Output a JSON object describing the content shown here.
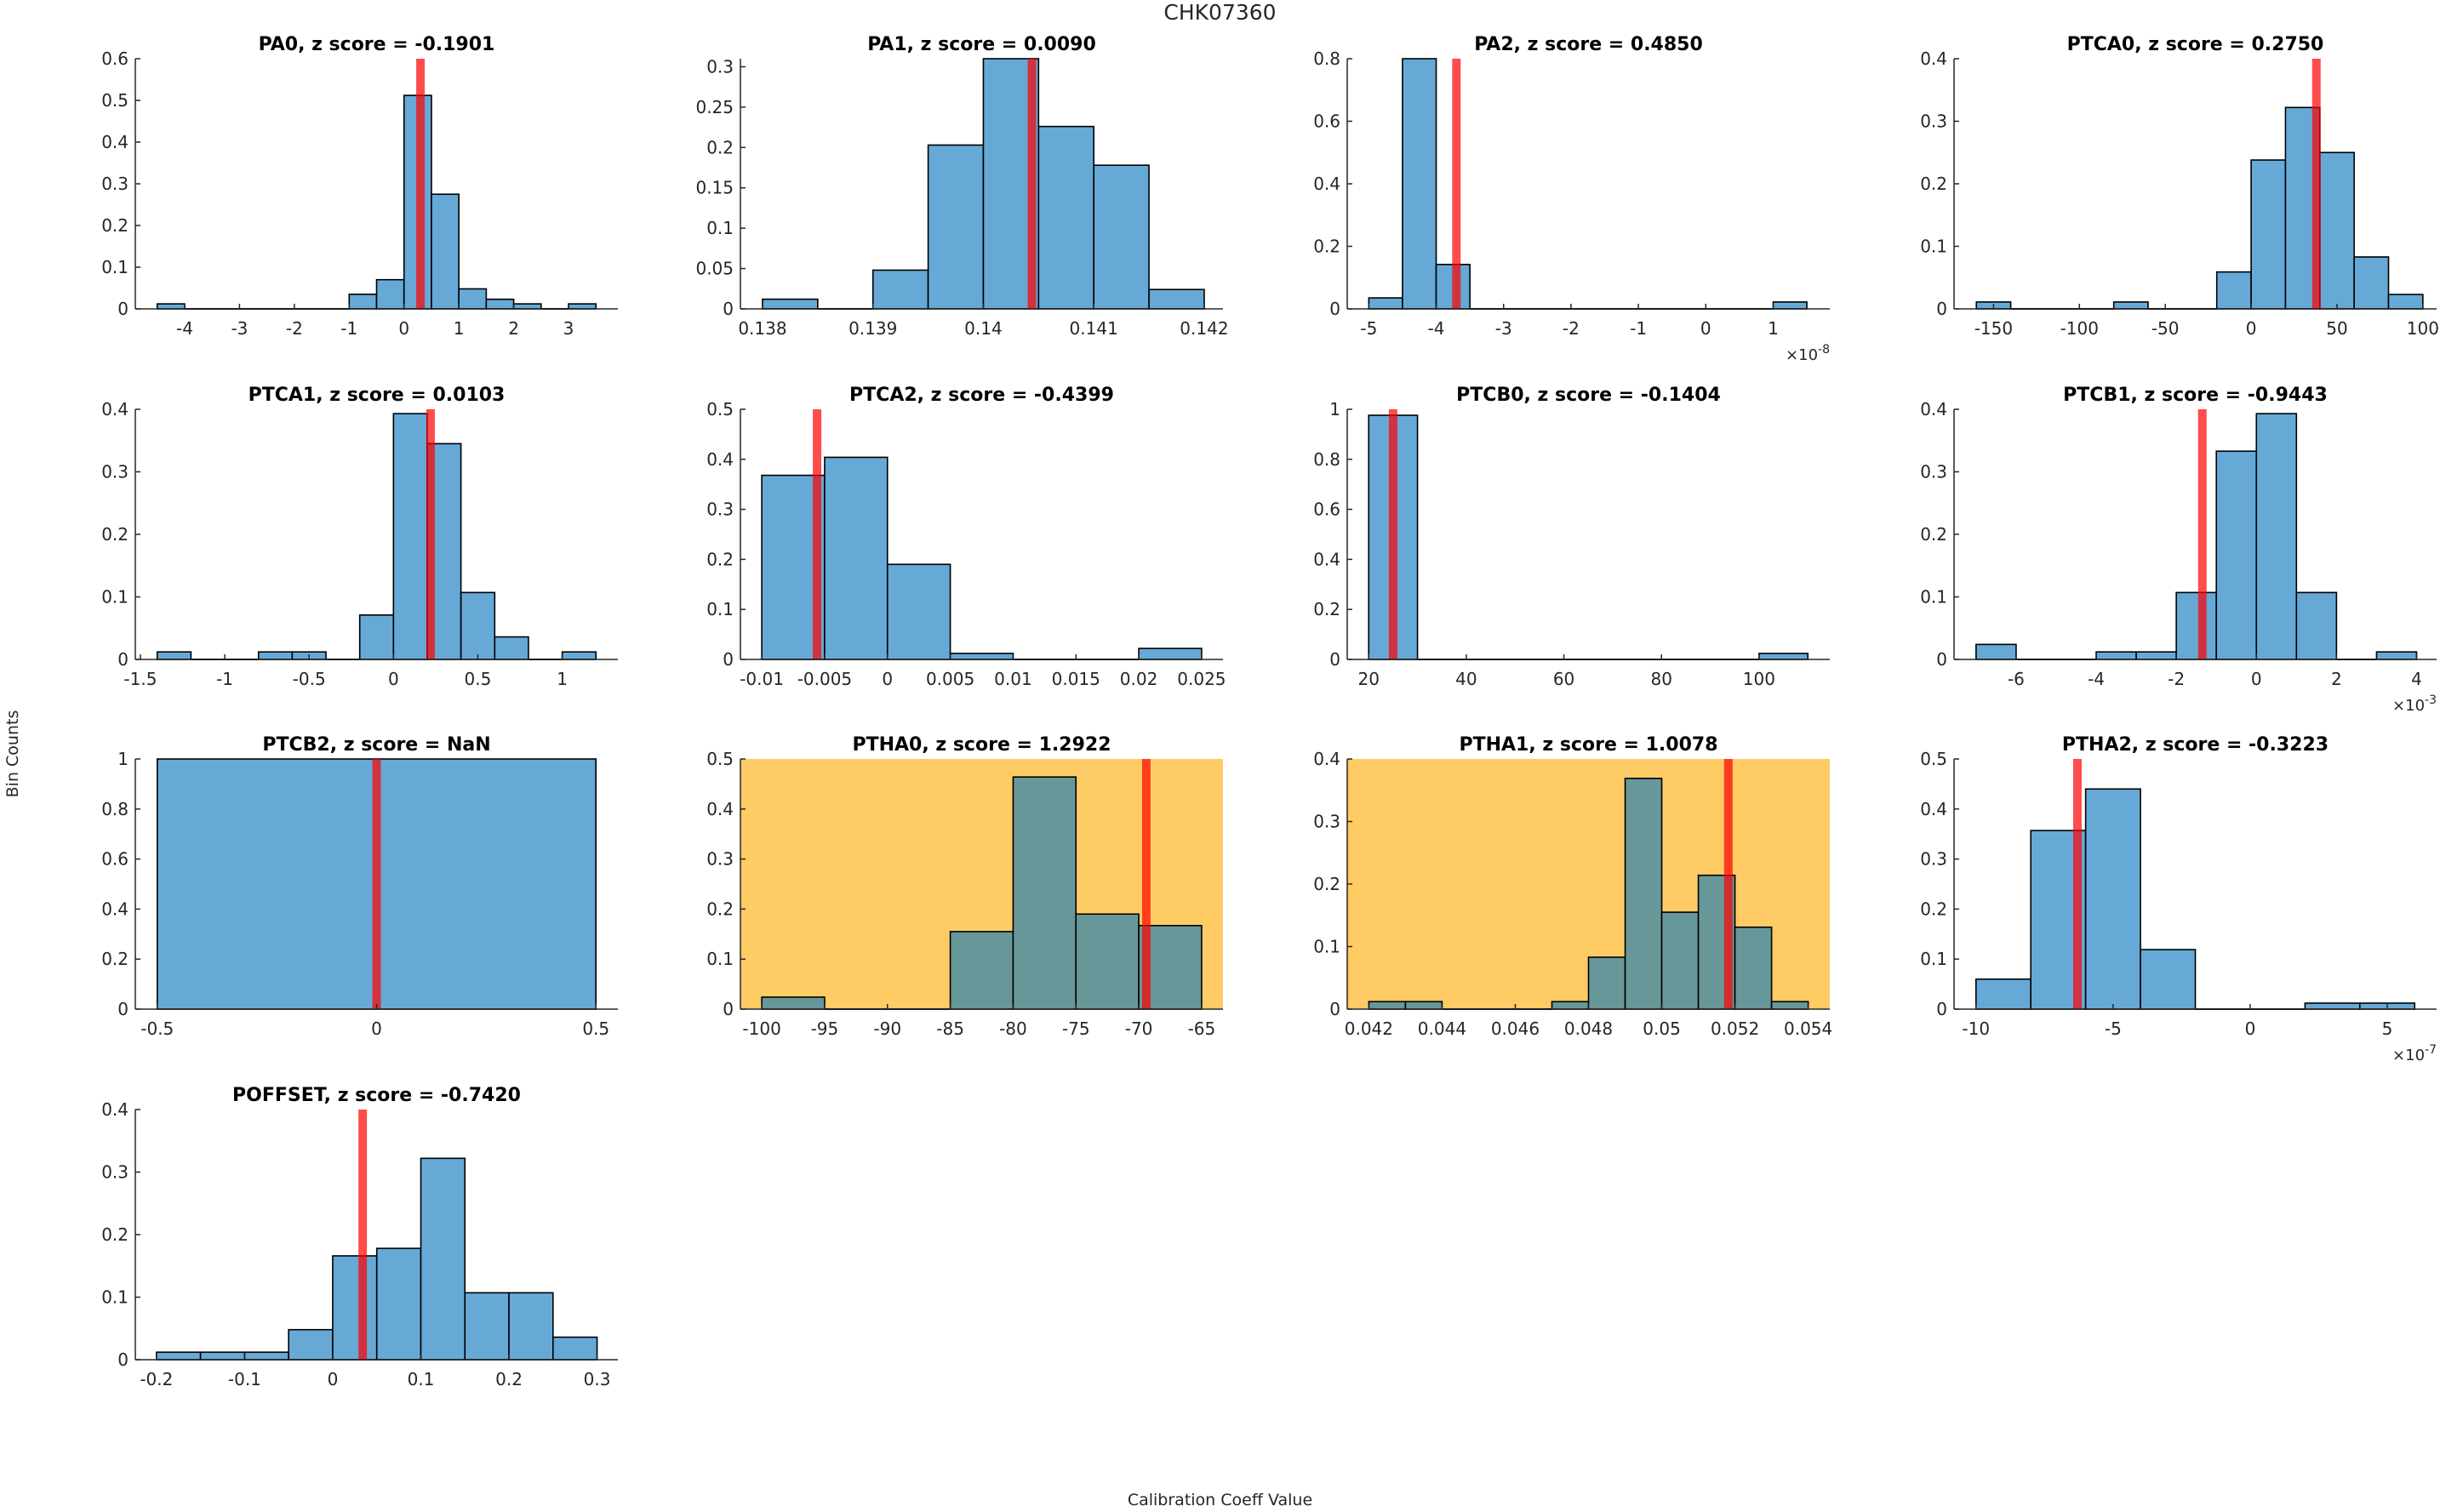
{
  "figure": {
    "title": "CHK07360",
    "ylabel": "Bin Counts",
    "xlabel": "Calibration Coeff Value"
  },
  "colors": {
    "bar": "#66a9d7",
    "bar_on_highlight": "#679799",
    "bar_edge": "#000000",
    "marker_line": "#ff4d4d",
    "highlight_background": "#fecb65",
    "axis": "#262626"
  },
  "chart_data": [
    {
      "type": "bar",
      "name": "PA0",
      "title": "PA0, z score = -0.1901",
      "z_score": "-0.1901",
      "highlight": false,
      "xlim": [
        -4.9,
        3.9
      ],
      "ylim": [
        0,
        0.6
      ],
      "xticks": [
        -4,
        -3,
        -2,
        -1,
        0,
        1,
        2,
        3
      ],
      "xtick_labels": [
        "-4",
        "-3",
        "-2",
        "-1",
        "0",
        "1",
        "2",
        "3"
      ],
      "yticks": [
        0,
        0.1,
        0.2,
        0.3,
        0.4,
        0.5,
        0.6
      ],
      "ytick_labels": [
        "0",
        "0.1",
        "0.2",
        "0.3",
        "0.4",
        "0.5",
        "0.6"
      ],
      "x_exponent": "",
      "bins": [
        [
          -4.5,
          -4,
          0.012
        ],
        [
          -4,
          -3.5,
          0
        ],
        [
          -3.5,
          -3,
          0
        ],
        [
          -3,
          -2.5,
          0
        ],
        [
          -2.5,
          -2,
          0
        ],
        [
          -2,
          -1.5,
          0
        ],
        [
          -1.5,
          -1,
          0
        ],
        [
          -1,
          -0.5,
          0.035
        ],
        [
          -0.5,
          0,
          0.07
        ],
        [
          0,
          0.5,
          0.512
        ],
        [
          0.5,
          1,
          0.275
        ],
        [
          1,
          1.5,
          0.048
        ],
        [
          1.5,
          2,
          0.023
        ],
        [
          2,
          2.5,
          0.012
        ],
        [
          2.5,
          3,
          0
        ],
        [
          3,
          3.5,
          0.012
        ]
      ],
      "marker_value": 0.3
    },
    {
      "type": "bar",
      "name": "PA1",
      "title": "PA1, z score = 0.0090",
      "z_score": "0.0090",
      "highlight": false,
      "xlim": [
        0.1378,
        0.14217
      ],
      "ylim": [
        0,
        0.31
      ],
      "xticks": [
        0.138,
        0.139,
        0.14,
        0.141,
        0.142
      ],
      "xtick_labels": [
        "0.138",
        "0.139",
        "0.14",
        "0.141",
        "0.142"
      ],
      "yticks": [
        0,
        0.05,
        0.1,
        0.15,
        0.2,
        0.25,
        0.3
      ],
      "ytick_labels": [
        "0",
        "0.05",
        "0.1",
        "0.15",
        "0.2",
        "0.25",
        "0.3"
      ],
      "x_exponent": "",
      "bins": [
        [
          0.138,
          0.1385,
          0.012
        ],
        [
          0.1385,
          0.139,
          0
        ],
        [
          0.139,
          0.1395,
          0.048
        ],
        [
          0.1395,
          0.14,
          0.203
        ],
        [
          0.14,
          0.1405,
          0.31
        ],
        [
          0.1405,
          0.141,
          0.226
        ],
        [
          0.141,
          0.1415,
          0.178
        ],
        [
          0.1415,
          0.142,
          0.024
        ]
      ],
      "marker_value": 0.14044
    },
    {
      "type": "bar",
      "name": "PA2",
      "title": "PA2, z score = 0.4850",
      "z_score": "0.4850",
      "highlight": false,
      "xlim": [
        -5.32,
        1.84
      ],
      "ylim": [
        0,
        0.8
      ],
      "xticks": [
        -5,
        -4,
        -3,
        -2,
        -1,
        0,
        1
      ],
      "xtick_labels": [
        "-5",
        "-4",
        "-3",
        "-2",
        "-1",
        "0",
        "1"
      ],
      "yticks": [
        0,
        0.2,
        0.4,
        0.6,
        0.8
      ],
      "ytick_labels": [
        "0",
        "0.2",
        "0.4",
        "0.6",
        "0.8"
      ],
      "x_exponent": "-8",
      "bins": [
        [
          -5,
          -4.5,
          0.035
        ],
        [
          -4.5,
          -4,
          0.8
        ],
        [
          -4,
          -3.5,
          0.142
        ],
        [
          -3.5,
          1,
          0
        ],
        [
          1,
          1.5,
          0.022
        ]
      ],
      "marker_value": -3.7
    },
    {
      "type": "bar",
      "name": "PTCA0",
      "title": "PTCA0, z score = 0.2750",
      "z_score": "0.2750",
      "highlight": false,
      "xlim": [
        -173,
        108
      ],
      "ylim": [
        0,
        0.4
      ],
      "xticks": [
        -150,
        -100,
        -50,
        0,
        50,
        100
      ],
      "xtick_labels": [
        "-150",
        "-100",
        "-50",
        "0",
        "50",
        "100"
      ],
      "yticks": [
        0,
        0.1,
        0.2,
        0.3,
        0.4
      ],
      "ytick_labels": [
        "0",
        "0.1",
        "0.2",
        "0.3",
        "0.4"
      ],
      "x_exponent": "",
      "bins": [
        [
          -160,
          -140,
          0.011
        ],
        [
          -140,
          -80,
          0
        ],
        [
          -80,
          -60,
          0.011
        ],
        [
          -60,
          -20,
          0
        ],
        [
          -20,
          0,
          0.059
        ],
        [
          0,
          20,
          0.238
        ],
        [
          20,
          40,
          0.322
        ],
        [
          40,
          60,
          0.25
        ],
        [
          60,
          80,
          0.083
        ],
        [
          80,
          100,
          0.023
        ]
      ],
      "marker_value": 38
    },
    {
      "type": "bar",
      "name": "PTCA1",
      "title": "PTCA1, z score = 0.0103",
      "z_score": "0.0103",
      "highlight": false,
      "xlim": [
        -1.53,
        1.33
      ],
      "ylim": [
        0,
        0.4
      ],
      "xticks": [
        -1.5,
        -1,
        -0.5,
        0,
        0.5,
        1
      ],
      "xtick_labels": [
        "-1.5",
        "-1",
        "-0.5",
        "0",
        "0.5",
        "1"
      ],
      "yticks": [
        0,
        0.1,
        0.2,
        0.3,
        0.4
      ],
      "ytick_labels": [
        "0",
        "0.1",
        "0.2",
        "0.3",
        "0.4"
      ],
      "x_exponent": "",
      "bins": [
        [
          -1.4,
          -1.2,
          0.012
        ],
        [
          -1.2,
          -0.8,
          0
        ],
        [
          -0.8,
          -0.6,
          0.012
        ],
        [
          -0.6,
          -0.4,
          0.012
        ],
        [
          -0.4,
          -0.2,
          0
        ],
        [
          -0.2,
          0,
          0.071
        ],
        [
          0,
          0.2,
          0.393
        ],
        [
          0.2,
          0.4,
          0.345
        ],
        [
          0.4,
          0.6,
          0.107
        ],
        [
          0.6,
          0.8,
          0.036
        ],
        [
          0.8,
          1.0,
          0
        ],
        [
          1.0,
          1.2,
          0.012
        ]
      ],
      "marker_value": 0.22
    },
    {
      "type": "bar",
      "name": "PTCA2",
      "title": "PTCA2, z score = -0.4399",
      "z_score": "-0.4399",
      "highlight": false,
      "xlim": [
        -0.0117,
        0.0267
      ],
      "ylim": [
        0,
        0.5
      ],
      "xticks": [
        -0.01,
        -0.005,
        0,
        0.005,
        0.01,
        0.015,
        0.02,
        0.025
      ],
      "xtick_labels": [
        "-0.01",
        "-0.005",
        "0",
        "0.005",
        "0.01",
        "0.015",
        "0.02",
        "0.025"
      ],
      "yticks": [
        0,
        0.1,
        0.2,
        0.3,
        0.4,
        0.5
      ],
      "ytick_labels": [
        "0",
        "0.1",
        "0.2",
        "0.3",
        "0.4",
        "0.5"
      ],
      "x_exponent": "",
      "bins": [
        [
          -0.01,
          -0.005,
          0.368
        ],
        [
          -0.005,
          0,
          0.404
        ],
        [
          0,
          0.005,
          0.19
        ],
        [
          0.005,
          0.01,
          0.012
        ],
        [
          0.01,
          0.02,
          0
        ],
        [
          0.02,
          0.025,
          0.022
        ]
      ],
      "marker_value": -0.0056
    },
    {
      "type": "bar",
      "name": "PTCB0",
      "title": "PTCB0, z score = -0.1404",
      "z_score": "-0.1404",
      "highlight": false,
      "xlim": [
        15.6,
        114.5
      ],
      "ylim": [
        0,
        1
      ],
      "xticks": [
        20,
        40,
        60,
        80,
        100
      ],
      "xtick_labels": [
        "20",
        "40",
        "60",
        "80",
        "100"
      ],
      "yticks": [
        0,
        0.2,
        0.4,
        0.6,
        0.8,
        1
      ],
      "ytick_labels": [
        "0",
        "0.2",
        "0.4",
        "0.6",
        "0.8",
        "1"
      ],
      "x_exponent": "",
      "bins": [
        [
          20,
          30,
          0.976
        ],
        [
          30,
          100,
          0
        ],
        [
          100,
          110,
          0.024
        ]
      ],
      "marker_value": 25
    },
    {
      "type": "bar",
      "name": "PTCB1",
      "title": "PTCB1, z score = -0.9443",
      "z_score": "-0.9443",
      "highlight": false,
      "xlim": [
        -7.55,
        4.5
      ],
      "ylim": [
        0,
        0.4
      ],
      "xticks": [
        -6,
        -4,
        -2,
        0,
        2,
        4
      ],
      "xtick_labels": [
        "-6",
        "-4",
        "-2",
        "0",
        "2",
        "4"
      ],
      "yticks": [
        0,
        0.1,
        0.2,
        0.3,
        0.4
      ],
      "ytick_labels": [
        "0",
        "0.1",
        "0.2",
        "0.3",
        "0.4"
      ],
      "x_exponent": "-3",
      "bins": [
        [
          -7,
          -6,
          0.024
        ],
        [
          -6,
          -4,
          0
        ],
        [
          -4,
          -3,
          0.012
        ],
        [
          -3,
          -2,
          0.012
        ],
        [
          -2,
          -1,
          0.107
        ],
        [
          -1,
          0,
          0.333
        ],
        [
          0,
          1,
          0.393
        ],
        [
          1,
          2,
          0.107
        ],
        [
          2,
          3,
          0
        ],
        [
          3,
          4,
          0.012
        ]
      ],
      "marker_value": -1.35
    },
    {
      "type": "bar",
      "name": "PTCB2",
      "title": "PTCB2, z score = NaN",
      "z_score": "NaN",
      "highlight": false,
      "xlim": [
        -0.55,
        0.55
      ],
      "ylim": [
        0,
        1
      ],
      "xticks": [
        -0.5,
        0,
        0.5
      ],
      "xtick_labels": [
        "-0.5",
        "0",
        "0.5"
      ],
      "yticks": [
        0,
        0.2,
        0.4,
        0.6,
        0.8,
        1
      ],
      "ytick_labels": [
        "0",
        "0.2",
        "0.4",
        "0.6",
        "0.8",
        "1"
      ],
      "x_exponent": "",
      "bins": [
        [
          -0.5,
          0.5,
          1
        ]
      ],
      "marker_value": 0
    },
    {
      "type": "bar",
      "name": "PTHA0",
      "title": "PTHA0, z score = 1.2922",
      "z_score": "1.2922",
      "highlight": true,
      "xlim": [
        -101.7,
        -63.3
      ],
      "ylim": [
        0,
        0.5
      ],
      "xticks": [
        -100,
        -95,
        -90,
        -85,
        -80,
        -75,
        -70,
        -65
      ],
      "xtick_labels": [
        "-100",
        "-95",
        "-90",
        "-85",
        "-80",
        "-75",
        "-70",
        "-65"
      ],
      "yticks": [
        0,
        0.1,
        0.2,
        0.3,
        0.4,
        0.5
      ],
      "ytick_labels": [
        "0",
        "0.1",
        "0.2",
        "0.3",
        "0.4",
        "0.5"
      ],
      "x_exponent": "",
      "bins": [
        [
          -100,
          -95,
          0.024
        ],
        [
          -95,
          -85,
          0
        ],
        [
          -85,
          -80,
          0.155
        ],
        [
          -80,
          -75,
          0.464
        ],
        [
          -75,
          -70,
          0.19
        ],
        [
          -70,
          -65,
          0.167
        ]
      ],
      "marker_value": -69.4
    },
    {
      "type": "bar",
      "name": "PTHA1",
      "title": "PTHA1, z score = 1.0078",
      "z_score": "1.0078",
      "highlight": true,
      "xlim": [
        0.04141,
        0.05459
      ],
      "ylim": [
        0,
        0.4
      ],
      "xticks": [
        0.042,
        0.044,
        0.046,
        0.048,
        0.05,
        0.052,
        0.054
      ],
      "xtick_labels": [
        "0.042",
        "0.044",
        "0.046",
        "0.048",
        "0.05",
        "0.052",
        "0.054"
      ],
      "yticks": [
        0,
        0.1,
        0.2,
        0.3,
        0.4
      ],
      "ytick_labels": [
        "0",
        "0.1",
        "0.2",
        "0.3",
        "0.4"
      ],
      "x_exponent": "",
      "bins": [
        [
          0.042,
          0.043,
          0.012
        ],
        [
          0.043,
          0.044,
          0.012
        ],
        [
          0.044,
          0.047,
          0
        ],
        [
          0.047,
          0.048,
          0.012
        ],
        [
          0.048,
          0.049,
          0.083
        ],
        [
          0.049,
          0.05,
          0.369
        ],
        [
          0.05,
          0.051,
          0.155
        ],
        [
          0.051,
          0.052,
          0.214
        ],
        [
          0.052,
          0.053,
          0.131
        ],
        [
          0.053,
          0.054,
          0.012
        ]
      ],
      "marker_value": 0.05182
    },
    {
      "type": "bar",
      "name": "PTHA2",
      "title": "PTHA2, z score = -0.3223",
      "z_score": "-0.3223",
      "highlight": false,
      "xlim": [
        -10.8,
        6.8
      ],
      "ylim": [
        0,
        0.5
      ],
      "xticks": [
        -10,
        -5,
        0,
        5
      ],
      "xtick_labels": [
        "-10",
        "-5",
        "0",
        "5"
      ],
      "yticks": [
        0,
        0.1,
        0.2,
        0.3,
        0.4,
        0.5
      ],
      "ytick_labels": [
        "0",
        "0.1",
        "0.2",
        "0.3",
        "0.4",
        "0.5"
      ],
      "x_exponent": "-7",
      "bins": [
        [
          -10,
          -8,
          0.06
        ],
        [
          -8,
          -6,
          0.357
        ],
        [
          -6,
          -4,
          0.44
        ],
        [
          -4,
          -2,
          0.119
        ],
        [
          -2,
          2,
          0
        ],
        [
          2,
          4,
          0.012
        ],
        [
          4,
          6,
          0.012
        ]
      ],
      "marker_value": -6.3
    },
    {
      "type": "bar",
      "name": "POFFSET",
      "title": "POFFSET, z score = -0.7420",
      "z_score": "-0.7420",
      "highlight": false,
      "xlim": [
        -0.224,
        0.3236
      ],
      "ylim": [
        0,
        0.4
      ],
      "xticks": [
        -0.2,
        -0.1,
        0,
        0.1,
        0.2,
        0.3
      ],
      "xtick_labels": [
        "-0.2",
        "-0.1",
        "0",
        "0.1",
        "0.2",
        "0.3"
      ],
      "yticks": [
        0,
        0.1,
        0.2,
        0.3,
        0.4
      ],
      "ytick_labels": [
        "0",
        "0.1",
        "0.2",
        "0.3",
        "0.4"
      ],
      "x_exponent": "",
      "bins": [
        [
          -0.2,
          -0.15,
          0.012
        ],
        [
          -0.15,
          -0.1,
          0.012
        ],
        [
          -0.1,
          -0.05,
          0.012
        ],
        [
          -0.05,
          0,
          0.048
        ],
        [
          0,
          0.05,
          0.166
        ],
        [
          0.05,
          0.1,
          0.178
        ],
        [
          0.1,
          0.15,
          0.322
        ],
        [
          0.15,
          0.2,
          0.107
        ],
        [
          0.2,
          0.25,
          0.107
        ],
        [
          0.25,
          0.3,
          0.036
        ]
      ],
      "marker_value": 0.034
    }
  ]
}
